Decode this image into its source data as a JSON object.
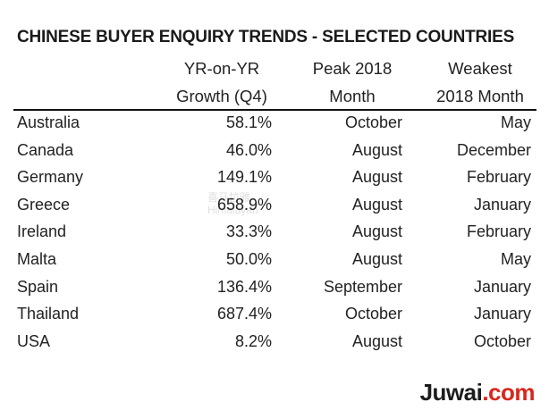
{
  "title": "CHINESE BUYER ENQUIRY TRENDS - SELECTED COUNTRIES",
  "headers": {
    "country": "",
    "growth_line1": "YR-on-YR",
    "growth_line2": "Growth (Q4)",
    "peak_line1": "Peak 2018",
    "peak_line2": "Month",
    "weak_line1": "Weakest",
    "weak_line2": "2018 Month"
  },
  "rows": [
    {
      "country": "Australia",
      "growth": "58.1%",
      "peak": "October",
      "weakest": "May"
    },
    {
      "country": "Canada",
      "growth": "46.0%",
      "peak": "August",
      "weakest": "December"
    },
    {
      "country": "Germany",
      "growth": "149.1%",
      "peak": "August",
      "weakest": "February"
    },
    {
      "country": "Greece",
      "growth": "658.9%",
      "peak": "August",
      "weakest": "January"
    },
    {
      "country": "Ireland",
      "growth": "33.3%",
      "peak": "August",
      "weakest": "February"
    },
    {
      "country": "Malta",
      "growth": "50.0%",
      "peak": "August",
      "weakest": "May"
    },
    {
      "country": "Spain",
      "growth": "136.4%",
      "peak": "September",
      "weakest": "January"
    },
    {
      "country": "Thailand",
      "growth": "687.4%",
      "peak": "October",
      "weakest": "January"
    },
    {
      "country": "USA",
      "growth": "8.2%",
      "peak": "August",
      "weakest": "October"
    }
  ],
  "watermark": {
    "line1": "喜马拉雅",
    "line2": "Himalayan"
  },
  "logo": {
    "part1": "Juwai",
    "part2": ".com",
    "accent_color": "#d9261c"
  }
}
